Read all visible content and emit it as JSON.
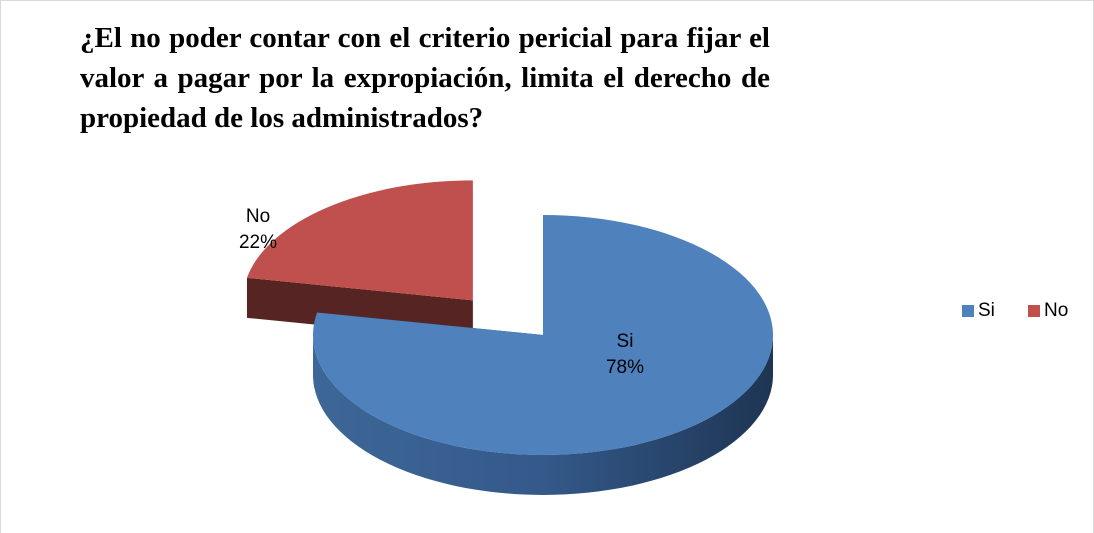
{
  "chart_data": {
    "type": "pie",
    "title": "¿El no poder contar con el criterio pericial para fijar el valor a pagar por la expropiación, limita el derecho de propiedad de los administrados?",
    "categories": [
      "Si",
      "No"
    ],
    "values": [
      78,
      22
    ],
    "value_labels": [
      "78%",
      "22%"
    ],
    "colors": [
      "#4f81bd",
      "#c0504d"
    ],
    "legend": "right"
  }
}
